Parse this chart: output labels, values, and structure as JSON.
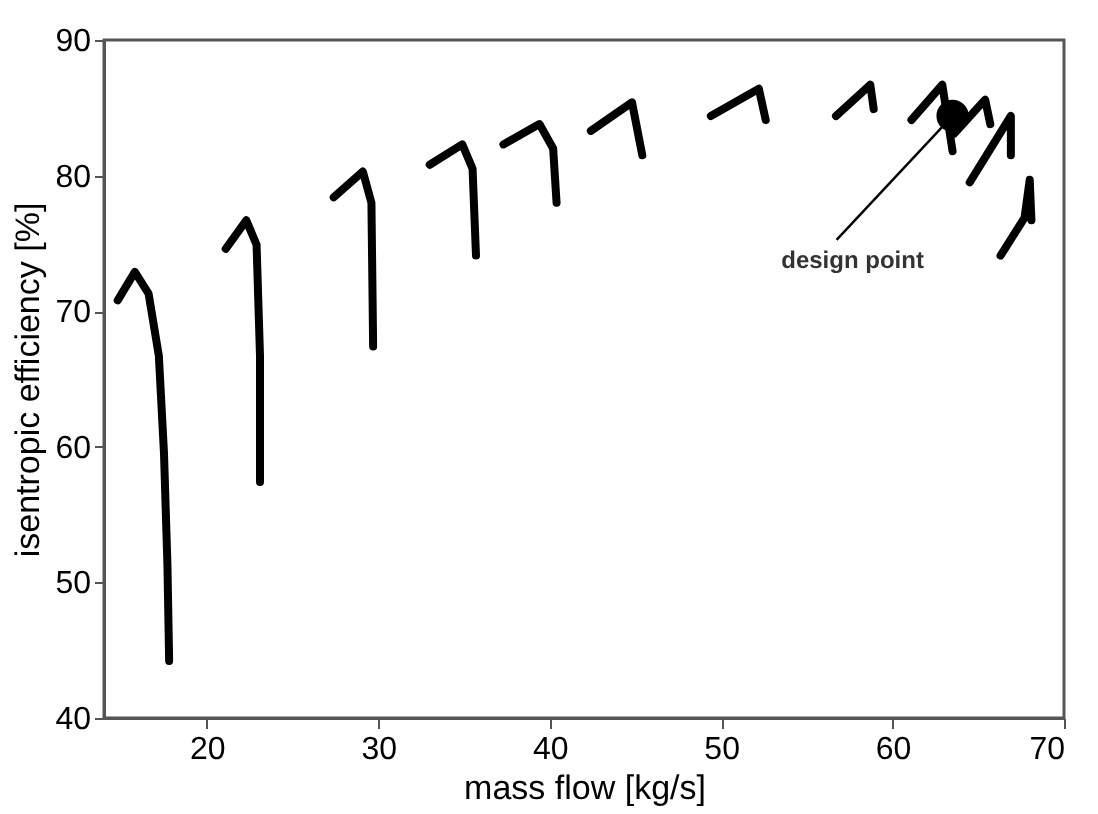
{
  "chart_data": {
    "type": "line",
    "xlabel": "mass flow [kg/s]",
    "ylabel": "isentropic efficiency [%]",
    "xlim": [
      14,
      70
    ],
    "xticks": [
      20,
      30,
      40,
      50,
      60,
      70
    ],
    "ylim": [
      40,
      90
    ],
    "yticks": [
      40,
      50,
      60,
      70,
      80,
      90
    ],
    "grid": false,
    "series": [
      {
        "color": "#000000",
        "x": [
          14.8,
          15.8,
          16.6,
          17.2,
          17.5,
          17.7,
          17.8
        ],
        "values": [
          70.8,
          72.9,
          71.3,
          66.7,
          59.5,
          51.3,
          44.2
        ]
      },
      {
        "color": "#000000",
        "x": [
          21.1,
          22.3,
          22.9,
          23.1,
          23.1
        ],
        "values": [
          74.6,
          76.7,
          74.9,
          66.7,
          57.4
        ]
      },
      {
        "color": "#000000",
        "x": [
          27.4,
          29.1,
          29.6,
          29.7
        ],
        "values": [
          78.4,
          80.3,
          78.0,
          67.4
        ]
      },
      {
        "color": "#000000",
        "x": [
          33.0,
          34.9,
          35.5,
          35.7
        ],
        "values": [
          80.8,
          82.3,
          80.5,
          74.1
        ]
      },
      {
        "color": "#000000",
        "x": [
          37.3,
          39.4,
          40.2,
          40.4
        ],
        "values": [
          82.3,
          83.8,
          82.0,
          78.0
        ]
      },
      {
        "color": "#000000",
        "x": [
          42.4,
          44.8,
          45.4
        ],
        "values": [
          83.3,
          85.4,
          81.5
        ]
      },
      {
        "color": "#000000",
        "x": [
          49.4,
          52.2,
          52.6
        ],
        "values": [
          84.4,
          86.4,
          84.1
        ]
      },
      {
        "color": "#000000",
        "x": [
          56.7,
          58.7,
          58.9
        ],
        "values": [
          84.4,
          86.7,
          84.9
        ]
      },
      {
        "color": "#000000",
        "x": [
          61.1,
          62.9,
          63.5
        ],
        "values": [
          84.1,
          86.7,
          81.8
        ]
      },
      {
        "color": "#000000",
        "x": [
          63.6,
          65.4,
          65.7
        ],
        "values": [
          83.1,
          85.6,
          83.8
        ]
      },
      {
        "color": "#000000",
        "x": [
          64.5,
          66.9,
          66.9
        ],
        "values": [
          79.5,
          84.4,
          81.5
        ]
      },
      {
        "color": "#000000",
        "x": [
          66.3,
          67.7,
          68.0,
          68.1
        ],
        "values": [
          74.1,
          76.9,
          79.7,
          76.7
        ]
      },
      {
        "type": "scatter",
        "color": "#000000",
        "marker": "circle",
        "x": [
          63.5
        ],
        "values": [
          84.4
        ]
      }
    ],
    "annotations": [
      {
        "text": "design point",
        "x": 63.5,
        "y": 84.4
      }
    ]
  }
}
